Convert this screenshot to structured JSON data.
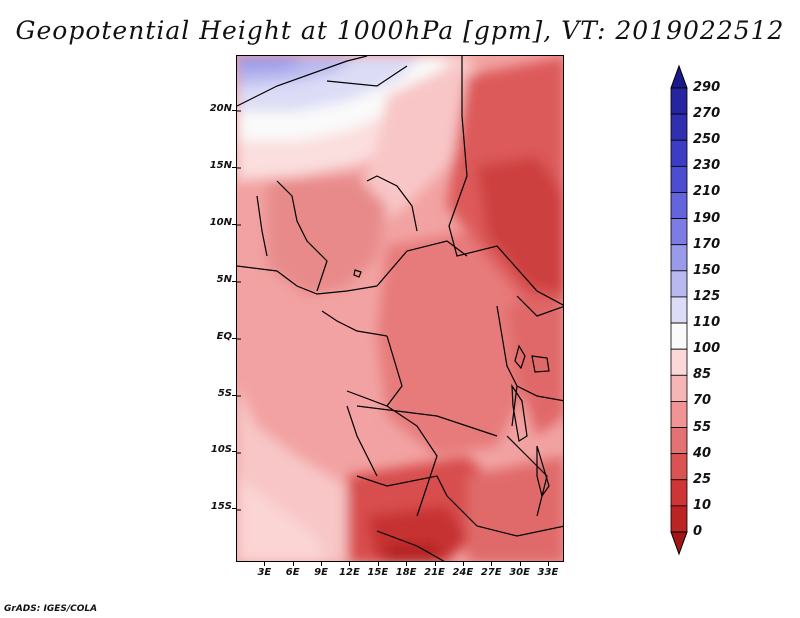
{
  "title": "Geopotential Height at 1000hPa [gpm], VT: 2019022512",
  "footer": "GrADS: IGES/COLA",
  "map": {
    "lat_labels": [
      "20N",
      "15N",
      "10N",
      "5N",
      "EQ",
      "5S",
      "10S",
      "15S"
    ],
    "lon_labels": [
      "3E",
      "6E",
      "9E",
      "12E",
      "15E",
      "18E",
      "21E",
      "24E",
      "27E",
      "30E",
      "33E"
    ],
    "lat_values": [
      20,
      15,
      10,
      5,
      0,
      -5,
      -10,
      -15
    ],
    "lon_values": [
      3,
      6,
      9,
      12,
      15,
      18,
      21,
      24,
      27,
      30,
      33
    ],
    "extent": {
      "lon_min": 0.0,
      "lon_max": 34.7,
      "lat_min": -19.7,
      "lat_max": 24.8
    }
  },
  "colorbar": {
    "labels": [
      "290",
      "270",
      "250",
      "230",
      "210",
      "190",
      "170",
      "150",
      "125",
      "110",
      "100",
      "85",
      "70",
      "55",
      "40",
      "25",
      "10",
      "0"
    ],
    "colors": [
      "#1a1a8c",
      "#26249e",
      "#2f2fb0",
      "#3c3cc4",
      "#4d4dd2",
      "#6464dc",
      "#7c7ce4",
      "#9a9aea",
      "#b9b9f0",
      "#dcdcf6",
      "#fafafa",
      "#fbd9d9",
      "#f7b6b6",
      "#f09494",
      "#e57272",
      "#da5252",
      "#ce3636",
      "#bc2424",
      "#a31414"
    ]
  },
  "colors": {
    "frame": "#000000",
    "background": "#ffffff"
  }
}
